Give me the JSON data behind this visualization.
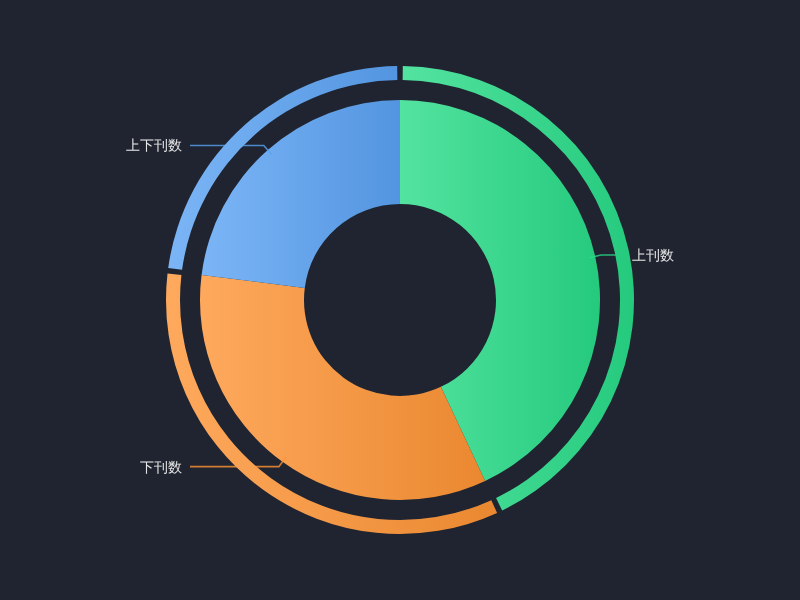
{
  "chart_data": {
    "type": "donut",
    "categories": [
      "上刊数",
      "下刊数",
      "上下刊数"
    ],
    "colors": [
      "#28dc88",
      "#fe9434",
      "#5aa2f4"
    ],
    "series": [
      {
        "values": [
          43,
          34,
          23
        ]
      },
      {
        "values": [
          43,
          34,
          23
        ]
      }
    ]
  }
}
